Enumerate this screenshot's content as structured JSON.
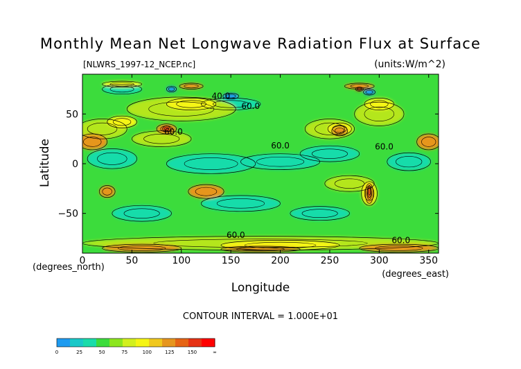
{
  "chart_data": {
    "type": "heatmap",
    "title": "Monthly Mean Net Longwave Radiation Flux at Surface",
    "file_label": "[NLWRS_1997-12_NCEP.nc]",
    "units_label": "(units:W/m^2)",
    "xlabel": "Longitude",
    "ylabel": "Latitude",
    "x_unit_label": "(degrees_east)",
    "y_unit_label": "(degrees_north)",
    "xlim": [
      0,
      360
    ],
    "ylim": [
      -90,
      90
    ],
    "x_ticks": [
      0,
      50,
      100,
      150,
      200,
      250,
      300,
      350
    ],
    "y_ticks": [
      50,
      0,
      -50
    ],
    "contour_interval_text": "CONTOUR INTERVAL = 1.000E+01",
    "contour_labels": [
      {
        "text": "60.0",
        "lon": 92,
        "lat": 32
      },
      {
        "text": "40.0",
        "lon": 140,
        "lat": 68
      },
      {
        "text": "60.0",
        "lon": 170,
        "lat": 58
      },
      {
        "text": "60.0",
        "lon": 200,
        "lat": 18
      },
      {
        "text": "60.0",
        "lon": 305,
        "lat": 17
      },
      {
        "text": "60.0",
        "lon": 155,
        "lat": -72
      },
      {
        "text": "60.0",
        "lon": 322,
        "lat": -77
      }
    ],
    "colorbar": {
      "ticks": [
        "0",
        "25",
        "50",
        "75",
        "100",
        "125",
        "150",
        "∞"
      ],
      "colors": [
        "#1e9bf0",
        "#19c8c8",
        "#19dcaa",
        "#3cdc3c",
        "#8ce61e",
        "#d2f01e",
        "#f5f514",
        "#f0c81e",
        "#e6961e",
        "#e66414",
        "#e63214",
        "#ff0000"
      ]
    },
    "fields": {
      "background": "#3cdc3c",
      "teal_blobs": [
        {
          "lon": 30,
          "lat": 5,
          "rlon": 25,
          "rlat": 10
        },
        {
          "lon": 130,
          "lat": 0,
          "rlon": 45,
          "rlat": 10
        },
        {
          "lon": 200,
          "lat": 2,
          "rlon": 40,
          "rlat": 8
        },
        {
          "lon": 250,
          "lat": 10,
          "rlon": 30,
          "rlat": 8
        },
        {
          "lon": 330,
          "lat": 2,
          "rlon": 22,
          "rlat": 9
        },
        {
          "lon": 160,
          "lat": -40,
          "rlon": 40,
          "rlat": 8
        },
        {
          "lon": 240,
          "lat": -50,
          "rlon": 30,
          "rlat": 7
        },
        {
          "lon": 60,
          "lat": -50,
          "rlon": 30,
          "rlat": 8
        },
        {
          "lon": 150,
          "lat": 60,
          "rlon": 30,
          "rlat": 6
        },
        {
          "lon": 40,
          "lat": 75,
          "rlon": 20,
          "rlat": 5
        }
      ],
      "blue_blobs": [
        {
          "lon": 90,
          "lat": 75,
          "rlon": 5,
          "rlat": 3
        },
        {
          "lon": 150,
          "lat": 68,
          "rlon": 8,
          "rlat": 3
        },
        {
          "lon": 290,
          "lat": 72,
          "rlon": 6,
          "rlat": 3
        }
      ],
      "yellow_green_blobs": [
        {
          "lon": 100,
          "lat": 55,
          "rlon": 55,
          "rlat": 12
        },
        {
          "lon": 20,
          "lat": 35,
          "rlon": 25,
          "rlat": 10
        },
        {
          "lon": 250,
          "lat": 35,
          "rlon": 25,
          "rlat": 10
        },
        {
          "lon": 300,
          "lat": 50,
          "rlon": 25,
          "rlat": 12
        },
        {
          "lon": 80,
          "lat": 25,
          "rlon": 30,
          "rlat": 8
        },
        {
          "lon": 270,
          "lat": -20,
          "rlon": 25,
          "rlat": 8
        },
        {
          "lon": 180,
          "lat": -80,
          "rlon": 180,
          "rlat": 7
        }
      ],
      "yellow_blobs": [
        {
          "lon": 110,
          "lat": 60,
          "rlon": 25,
          "rlat": 6
        },
        {
          "lon": 40,
          "lat": 42,
          "rlon": 15,
          "rlat": 6
        },
        {
          "lon": 260,
          "lat": 35,
          "rlon": 12,
          "rlat": 6
        },
        {
          "lon": 300,
          "lat": 60,
          "rlon": 15,
          "rlat": 6
        },
        {
          "lon": 290,
          "lat": -30,
          "rlon": 8,
          "rlat": 12
        },
        {
          "lon": 200,
          "lat": -82,
          "rlon": 60,
          "rlat": 5
        },
        {
          "lon": 40,
          "lat": 80,
          "rlon": 20,
          "rlat": 3
        }
      ],
      "orange_blobs": [
        {
          "lon": 10,
          "lat": 22,
          "rlon": 15,
          "rlat": 8
        },
        {
          "lon": 350,
          "lat": 22,
          "rlon": 12,
          "rlat": 8
        },
        {
          "lon": 85,
          "lat": 35,
          "rlon": 10,
          "rlat": 5
        },
        {
          "lon": 125,
          "lat": -28,
          "rlon": 18,
          "rlat": 7
        },
        {
          "lon": 25,
          "lat": -28,
          "rlon": 8,
          "rlat": 6
        },
        {
          "lon": 290,
          "lat": -30,
          "rlon": 4,
          "rlat": 10
        },
        {
          "lon": 260,
          "lat": 33,
          "rlon": 8,
          "rlat": 5
        },
        {
          "lon": 60,
          "lat": -85,
          "rlon": 40,
          "rlat": 4
        },
        {
          "lon": 320,
          "lat": -85,
          "rlon": 40,
          "rlat": 4
        },
        {
          "lon": 180,
          "lat": -86,
          "rlon": 40,
          "rlat": 3
        },
        {
          "lon": 280,
          "lat": 78,
          "rlon": 15,
          "rlat": 3
        },
        {
          "lon": 110,
          "lat": 78,
          "rlon": 12,
          "rlat": 3
        }
      ],
      "red_blobs": [
        {
          "lon": 85,
          "lat": 35,
          "rlon": 4,
          "rlat": 3
        },
        {
          "lon": 290,
          "lat": -28,
          "rlon": 2,
          "rlat": 6
        },
        {
          "lon": 280,
          "lat": 75,
          "rlon": 4,
          "rlat": 2
        }
      ]
    }
  }
}
